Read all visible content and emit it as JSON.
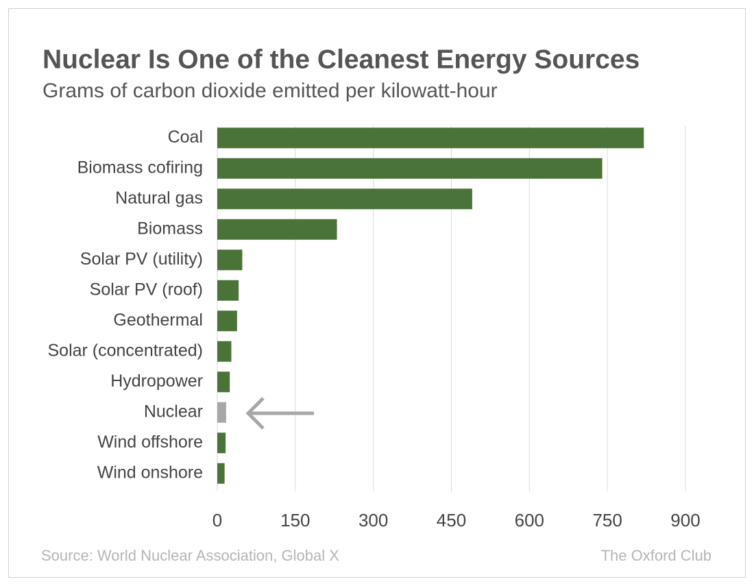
{
  "chart_data": {
    "type": "hbar",
    "title": "Nuclear Is One of the Cleanest Energy Sources",
    "subtitle": "Grams of carbon dioxide emitted per kilowatt-hour",
    "categories": [
      "Coal",
      "Biomass cofiring",
      "Natural gas",
      "Biomass",
      "Solar PV (utility)",
      "Solar PV (roof)",
      "Geothermal",
      "Solar (concentrated)",
      "Hydropower",
      "Nuclear",
      "Wind offshore",
      "Wind onshore"
    ],
    "values": [
      820,
      740,
      490,
      230,
      48,
      41,
      38,
      27,
      24,
      17,
      16,
      14
    ],
    "colors": [
      "#4a7337",
      "#4a7337",
      "#4a7337",
      "#4a7337",
      "#4a7337",
      "#4a7337",
      "#4a7337",
      "#4a7337",
      "#4a7337",
      "#a7a7a9",
      "#4a7337",
      "#4a7337"
    ],
    "xlim": [
      0,
      900
    ],
    "xticks": [
      0,
      150,
      300,
      450,
      600,
      750,
      900
    ],
    "grid": true,
    "source": "Source: World Nuclear Association, Global X",
    "credit": "The Oxford Club"
  }
}
